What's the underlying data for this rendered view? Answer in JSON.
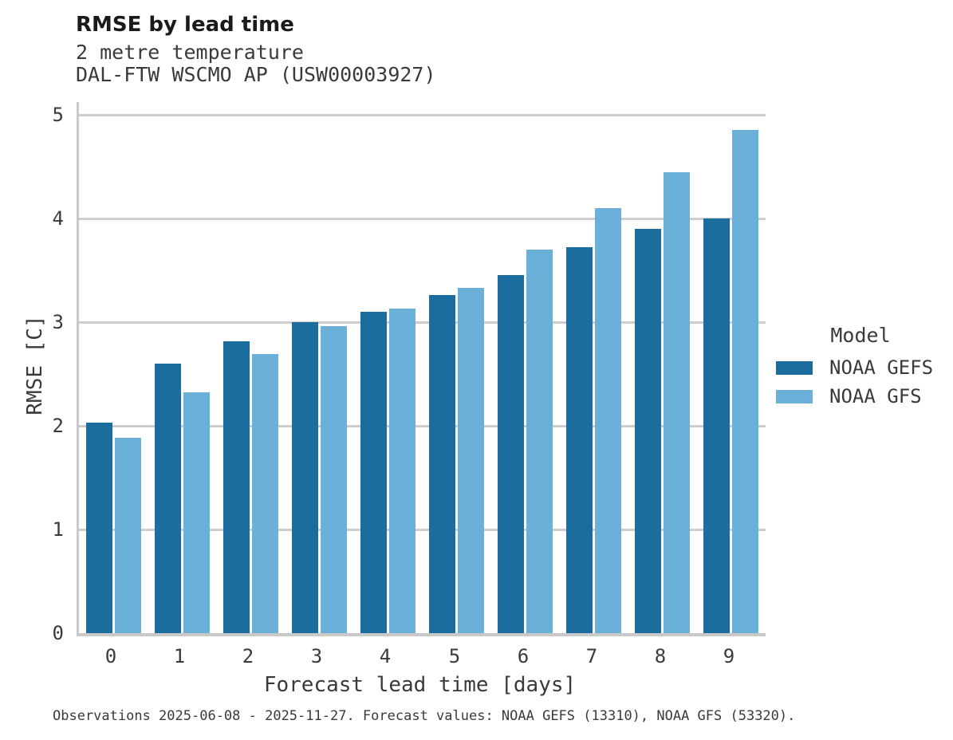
{
  "header": {
    "title": "RMSE by lead time",
    "subtitle1": "2 metre temperature",
    "subtitle2": "DAL-FTW WSCMO AP (USW00003927)"
  },
  "legend": {
    "title": "Model"
  },
  "footer": {
    "caption": "Observations 2025-06-08 - 2025-11-27. Forecast values: NOAA GEFS (13310), NOAA GFS (53320)."
  },
  "chart_data": {
    "type": "bar",
    "title": "RMSE by lead time",
    "subtitle": "2 metre temperature",
    "station": "DAL-FTW WSCMO AP (USW00003927)",
    "categories": [
      "0",
      "1",
      "2",
      "3",
      "4",
      "5",
      "6",
      "7",
      "8",
      "9"
    ],
    "series": [
      {
        "name": "NOAA GEFS",
        "color": "#1b6d9e",
        "values": [
          2.03,
          2.6,
          2.81,
          3.0,
          3.1,
          3.26,
          3.45,
          3.72,
          3.9,
          4.0
        ]
      },
      {
        "name": "NOAA GFS",
        "color": "#6bb0d8",
        "values": [
          1.88,
          2.32,
          2.69,
          2.96,
          3.13,
          3.33,
          3.7,
          4.1,
          4.44,
          4.85
        ]
      }
    ],
    "xlabel": "Forecast lead time [days]",
    "ylabel": "RMSE [C]",
    "ylim": [
      0,
      5.12
    ],
    "yticks": [
      0,
      1,
      2,
      3,
      4,
      5
    ],
    "grid": "horizontal-major",
    "legend_position": "right",
    "colors": {
      "grid": "#cdcdcd",
      "axis": "#c9c9c9",
      "text": "#3a3a3a",
      "title_text": "#1a1a1a",
      "background": "#ffffff"
    }
  }
}
